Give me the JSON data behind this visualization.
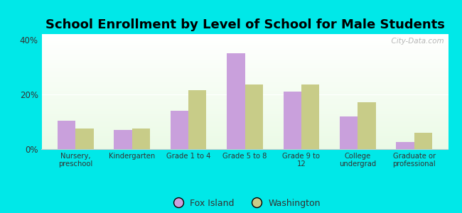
{
  "title": "School Enrollment by Level of School for Male Students",
  "categories": [
    "Nursery,\npreschool",
    "Kindergarten",
    "Grade 1 to 4",
    "Grade 5 to 8",
    "Grade 9 to\n12",
    "College\nundergrad",
    "Graduate or\nprofessional"
  ],
  "fox_island": [
    10.5,
    7.0,
    14.0,
    35.0,
    21.0,
    12.0,
    2.5
  ],
  "washington": [
    7.5,
    7.5,
    21.5,
    23.5,
    23.5,
    17.0,
    6.0
  ],
  "fox_island_color": "#c9a0dc",
  "washington_color": "#c8cc88",
  "ylim": [
    0,
    42
  ],
  "yticks": [
    0,
    20,
    40
  ],
  "ytick_labels": [
    "0%",
    "20%",
    "40%"
  ],
  "bg_color": "#00e8e8",
  "title_fontsize": 13,
  "watermark": "  City-Data.com",
  "legend_labels": [
    "Fox Island",
    "Washington"
  ]
}
